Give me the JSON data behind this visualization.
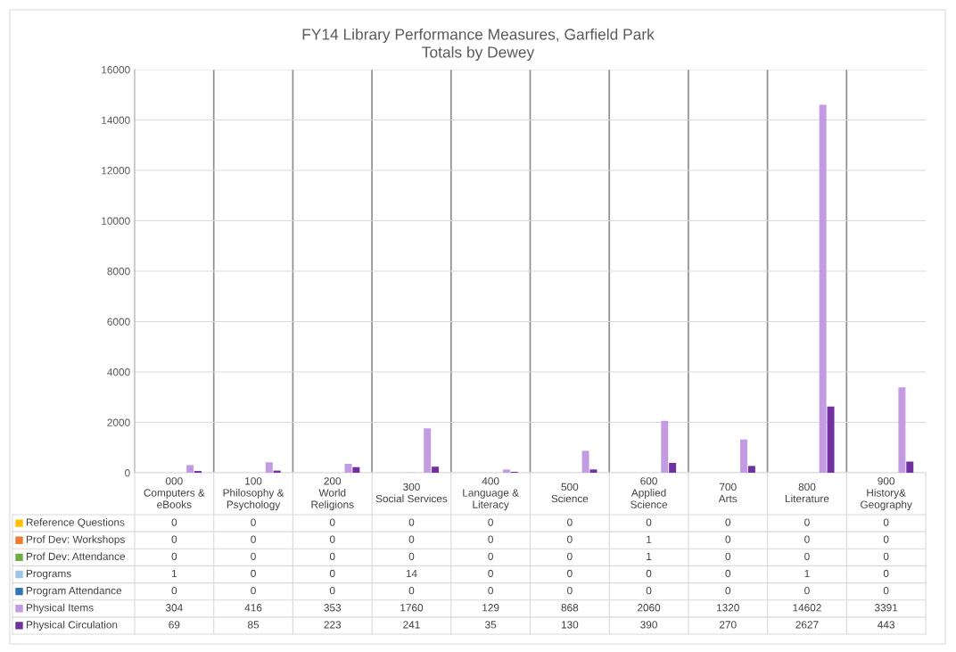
{
  "chart_data": {
    "type": "bar",
    "title": "FY14 Library Performance Measures, Garfield Park",
    "subtitle": "Totals by Dewey",
    "categories": [
      "000\nComputers &\neBooks",
      "100\nPhilosophy &\nPsychology",
      "200\nWorld\nReligions",
      "300\nSocial Services",
      "400\nLanguage &\nLiteracy",
      "500\nScience",
      "600\nApplied\nScience",
      "700\nArts",
      "800\nLiterature",
      "900\nHistory&\nGeography"
    ],
    "series": [
      {
        "name": "Reference Questions",
        "color": "#ffc000",
        "values": [
          0,
          0,
          0,
          0,
          0,
          0,
          0,
          0,
          0,
          0
        ]
      },
      {
        "name": "Prof Dev: Workshops",
        "color": "#ed7d31",
        "values": [
          0,
          0,
          0,
          0,
          0,
          0,
          1,
          0,
          0,
          0
        ]
      },
      {
        "name": "Prof Dev: Attendance",
        "color": "#70ad47",
        "values": [
          0,
          0,
          0,
          0,
          0,
          0,
          1,
          0,
          0,
          0
        ]
      },
      {
        "name": "Programs",
        "color": "#9dc3e6",
        "values": [
          1,
          0,
          0,
          14,
          0,
          0,
          0,
          0,
          1,
          0
        ]
      },
      {
        "name": "Program Attendance",
        "color": "#2e75b6",
        "values": [
          0,
          0,
          0,
          0,
          0,
          0,
          0,
          0,
          0,
          0
        ]
      },
      {
        "name": "Physical Items",
        "color": "#c39be2",
        "values": [
          304,
          416,
          353,
          1760,
          129,
          868,
          2060,
          1320,
          14602,
          3391
        ]
      },
      {
        "name": "Physical Circulation",
        "color": "#7030a0",
        "values": [
          69,
          85,
          223,
          241,
          35,
          130,
          390,
          270,
          2627,
          443
        ]
      }
    ],
    "ylim": [
      0,
      16000
    ],
    "yticks": [
      0,
      2000,
      4000,
      6000,
      8000,
      10000,
      12000,
      14000,
      16000
    ],
    "grid": "y",
    "legend": "bottom",
    "data_labels": true
  }
}
